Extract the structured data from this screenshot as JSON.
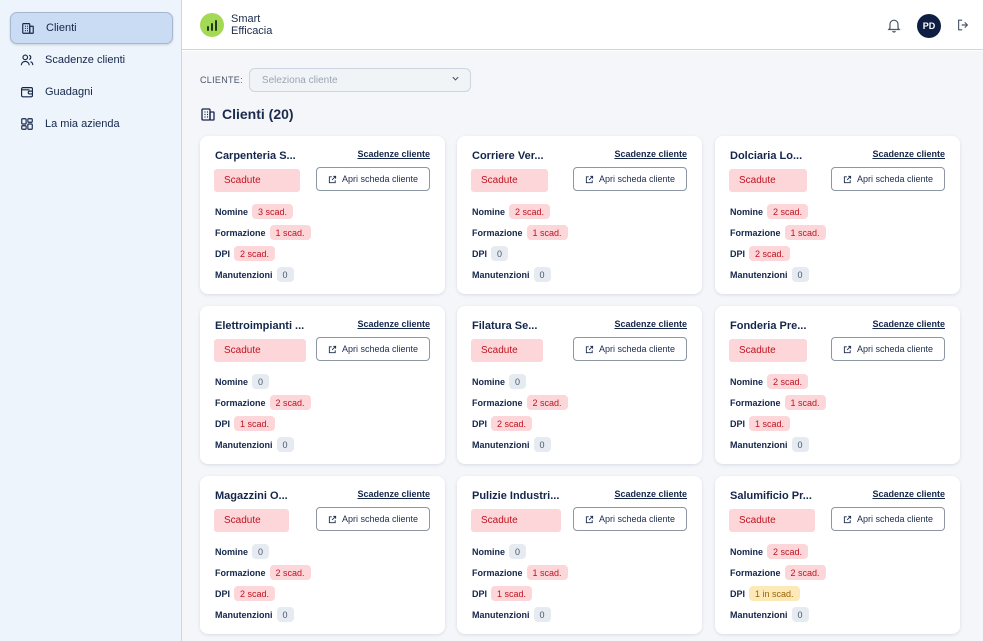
{
  "sidebar": {
    "items": [
      {
        "label": "Clienti",
        "icon": "building-icon"
      },
      {
        "label": "Scadenze clienti",
        "icon": "users-icon"
      },
      {
        "label": "Guadagni",
        "icon": "wallet-icon"
      },
      {
        "label": "La mia azienda",
        "icon": "grid-icon"
      }
    ]
  },
  "header": {
    "brand_line1": "Smart",
    "brand_line2": "Efficacia",
    "avatar_initials": "PD"
  },
  "filter": {
    "label": "CLIENTE:",
    "placeholder": "Seleziona cliente"
  },
  "section": {
    "title": "Clienti (20)"
  },
  "card_common": {
    "link_label": "Scadenze cliente",
    "open_label": "Apri scheda cliente",
    "labels": {
      "nomine": "Nomine",
      "formazione": "Formazione",
      "dpi": "DPI",
      "manutenzioni": "Manutenzioni"
    }
  },
  "cards": [
    {
      "name": "Carpenteria S...",
      "status": "Scadute",
      "nomine": "3 scad.",
      "formazione": "1 scad.",
      "dpi": "2 scad.",
      "manutenzioni": "0"
    },
    {
      "name": "Corriere Ver...",
      "status": "Scadute",
      "nomine": "2 scad.",
      "formazione": "1 scad.",
      "dpi": "0",
      "manutenzioni": "0"
    },
    {
      "name": "Dolciaria Lo...",
      "status": "Scadute",
      "nomine": "2 scad.",
      "formazione": "1 scad.",
      "dpi": "2 scad.",
      "manutenzioni": "0"
    },
    {
      "name": "Elettroimpianti ...",
      "status": "Scadute",
      "nomine": "0",
      "formazione": "2 scad.",
      "dpi": "1 scad.",
      "manutenzioni": "0"
    },
    {
      "name": "Filatura Se...",
      "status": "Scadute",
      "nomine": "0",
      "formazione": "2 scad.",
      "dpi": "2 scad.",
      "manutenzioni": "0"
    },
    {
      "name": "Fonderia Pre...",
      "status": "Scadute",
      "nomine": "2 scad.",
      "formazione": "1 scad.",
      "dpi": "1 scad.",
      "manutenzioni": "0"
    },
    {
      "name": "Magazzini O...",
      "status": "Scadute",
      "nomine": "0",
      "formazione": "2 scad.",
      "dpi": "2 scad.",
      "manutenzioni": "0"
    },
    {
      "name": "Pulizie Industri...",
      "status": "Scadute",
      "nomine": "0",
      "formazione": "1 scad.",
      "dpi": "1 scad.",
      "manutenzioni": "0"
    },
    {
      "name": "Salumificio Pr...",
      "status": "Scadute",
      "nomine": "2 scad.",
      "formazione": "2 scad.",
      "dpi": "1 in scad.",
      "manutenzioni": "0"
    }
  ],
  "colors": {
    "expired_bg": "#fcd6d9",
    "expired_text": "#c1121f",
    "warning_bg": "#fde9b8",
    "zero_bg": "#e6ebf1",
    "brand_green": "#a4d955",
    "navy": "#0f1f44"
  }
}
